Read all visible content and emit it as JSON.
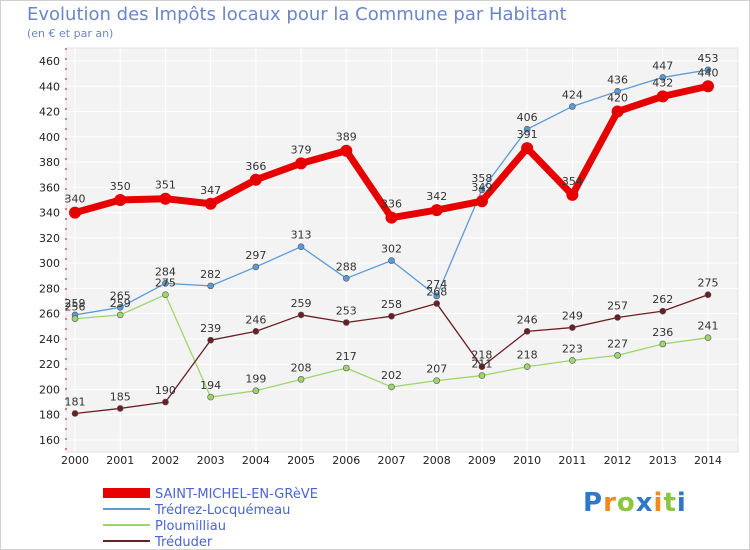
{
  "title": "Evolution des Impôts locaux pour la Commune par Habitant",
  "subtitle": "(en € et par an)",
  "logo": {
    "letters": [
      "P",
      "r",
      "o",
      "x",
      "i",
      "t",
      "i"
    ],
    "colors": [
      "#2e78c4",
      "#f08a1c",
      "#8cc63f",
      "#2e78c4",
      "#f08a1c",
      "#8cc63f",
      "#2e78c4"
    ]
  },
  "chart_data": {
    "type": "line",
    "title": "Evolution des Impôts locaux pour la Commune par Habitant",
    "subtitle": "(en € et par an)",
    "x": [
      "2000",
      "2001",
      "2002",
      "2003",
      "2004",
      "2005",
      "2006",
      "2007",
      "2008",
      "2009",
      "2010",
      "2011",
      "2012",
      "2013",
      "2014"
    ],
    "ylim": [
      160,
      460
    ],
    "yticks": [
      160,
      180,
      200,
      220,
      240,
      260,
      280,
      300,
      320,
      340,
      360,
      380,
      400,
      420,
      440,
      460
    ],
    "grid": true,
    "legend_position": "bottom-left",
    "series": [
      {
        "name": "SAINT-MICHEL-EN-GRèVE",
        "color": "#e60000",
        "line_width": 7,
        "point_radius": 6,
        "values": [
          340,
          350,
          351,
          347,
          366,
          379,
          389,
          336,
          342,
          349,
          391,
          354,
          420,
          432,
          440
        ]
      },
      {
        "name": "Trédrez-Locquémeau",
        "color": "#5b9bd5",
        "line_width": 1.3,
        "point_radius": 3,
        "values": [
          259,
          265,
          284,
          282,
          297,
          313,
          288,
          302,
          274,
          358,
          406,
          424,
          436,
          447,
          453
        ]
      },
      {
        "name": "Ploumilliau",
        "color": "#9ed66b",
        "line_width": 1.3,
        "point_radius": 3,
        "values": [
          256,
          259,
          275,
          194,
          199,
          208,
          217,
          202,
          207,
          211,
          218,
          223,
          227,
          236,
          241
        ]
      },
      {
        "name": "Tréduder",
        "color": "#6b1f24",
        "line_width": 1.3,
        "point_radius": 3,
        "values": [
          181,
          185,
          190,
          239,
          246,
          259,
          253,
          258,
          268,
          218,
          246,
          249,
          257,
          262,
          275
        ]
      }
    ]
  }
}
